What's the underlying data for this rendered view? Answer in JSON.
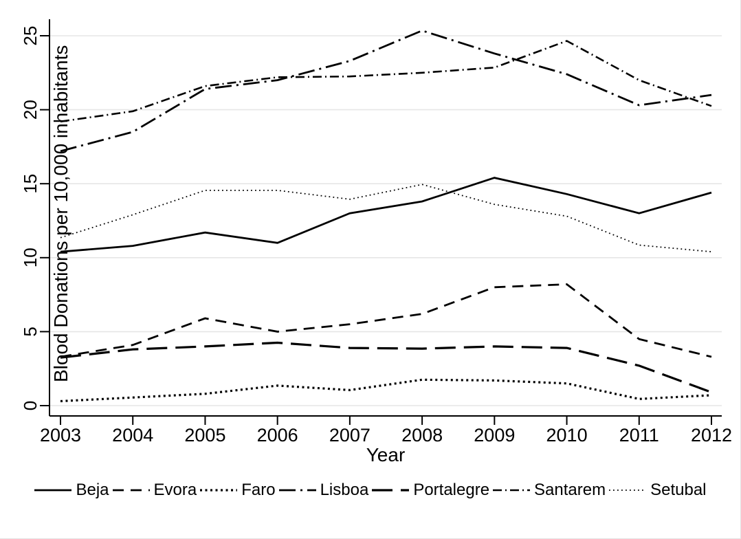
{
  "chart_data": {
    "type": "line",
    "title": "",
    "xlabel": "Year",
    "ylabel": "Blood Donations per 10,000 inhabitants",
    "x": [
      2003,
      2004,
      2005,
      2006,
      2007,
      2008,
      2009,
      2010,
      2011,
      2012
    ],
    "ylim": [
      0,
      25
    ],
    "yticks": [
      0,
      5,
      10,
      15,
      20,
      25
    ],
    "grid": "horizontal-light-gray",
    "legend_position": "bottom",
    "line_color": "#000000",
    "grid_color": "#e6e6e6",
    "series": [
      {
        "name": "Beja",
        "line_style": "solid",
        "values": [
          10.4,
          10.8,
          11.7,
          11.0,
          13.0,
          13.8,
          15.4,
          14.3,
          13.0,
          14.4
        ]
      },
      {
        "name": "Evora",
        "line_style": "dash",
        "values": [
          3.3,
          4.1,
          5.9,
          5.0,
          5.5,
          6.2,
          8.0,
          8.2,
          4.5,
          3.3
        ]
      },
      {
        "name": "Faro",
        "line_style": "dot-bold",
        "values": [
          0.3,
          0.55,
          0.8,
          1.35,
          1.05,
          1.75,
          1.7,
          1.5,
          0.45,
          0.7
        ]
      },
      {
        "name": "Lisboa",
        "line_style": "longdash-dot",
        "values": [
          17.2,
          18.5,
          21.4,
          22.0,
          23.3,
          25.35,
          23.8,
          22.4,
          20.3,
          21.0
        ]
      },
      {
        "name": "Portalegre",
        "line_style": "longdash",
        "values": [
          3.25,
          3.8,
          4.0,
          4.25,
          3.9,
          3.85,
          4.0,
          3.9,
          2.7,
          0.9
        ]
      },
      {
        "name": "Santarem",
        "line_style": "dash-dot",
        "values": [
          19.2,
          19.9,
          21.6,
          22.2,
          22.25,
          22.5,
          22.85,
          24.65,
          22.0,
          20.25
        ]
      },
      {
        "name": "Setubal",
        "line_style": "dot-fine",
        "values": [
          11.35,
          12.9,
          14.55,
          14.55,
          13.95,
          14.95,
          13.6,
          12.8,
          10.85,
          10.4
        ]
      }
    ]
  }
}
